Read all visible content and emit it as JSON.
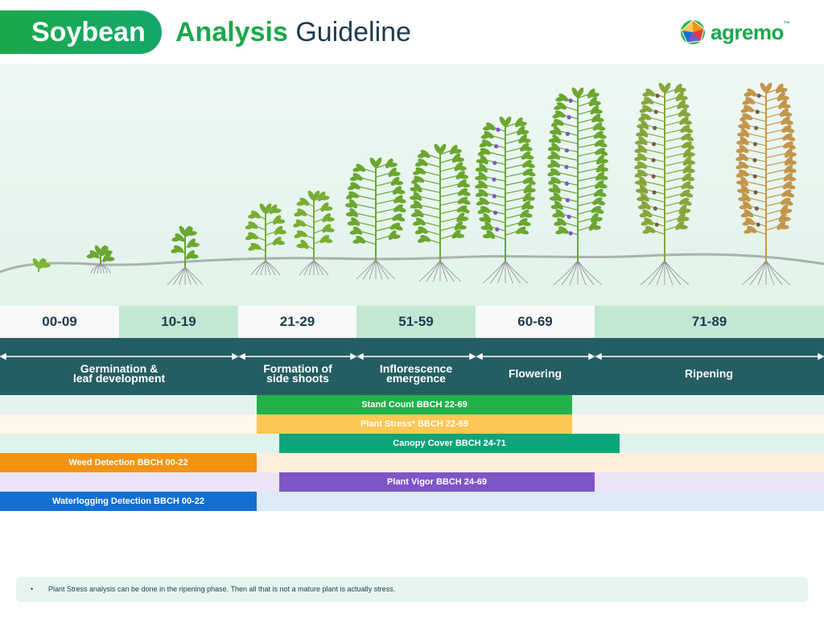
{
  "title": {
    "pill": "Soybean",
    "highlight": "Analysis",
    "rest": "Guideline"
  },
  "logo": {
    "text": "agremo",
    "tm": "™"
  },
  "stages": [
    {
      "code": "00-09"
    },
    {
      "code": "10-19"
    },
    {
      "code": "21-29"
    },
    {
      "code": "51-59"
    },
    {
      "code": "60-69"
    },
    {
      "code": "71-89"
    }
  ],
  "phases": [
    {
      "label": "Germination & leaf development"
    },
    {
      "label": "Formation of side shoots"
    },
    {
      "label": "Inflorescence emergence"
    },
    {
      "label": "Flowering"
    },
    {
      "label": "Ripening"
    }
  ],
  "analyses": [
    {
      "label": "Stand Count BBCH 22-69",
      "color": "#22b24c",
      "bg": "#e3f4ec"
    },
    {
      "label": "Plant Stress* BBCH 22-69",
      "color": "#fdc754",
      "bg": "#fef6e6"
    },
    {
      "label": "Canopy Cover BBCH 24-71",
      "color": "#0aa57a",
      "bg": "#def4ea"
    },
    {
      "label": "Weed Detection BBCH 00-22",
      "color": "#f39313",
      "bg": "#fdefdc"
    },
    {
      "label": "Plant Vigor BBCH 24-69",
      "color": "#7e55c6",
      "bg": "#ece4f6"
    },
    {
      "label": "Waterlogging Detection BBCH 00-22",
      "color": "#1170d2",
      "bg": "#dce9f7"
    }
  ],
  "note": {
    "bullet": "•",
    "text": "Plant Stress analysis can be done in the ripening phase. Then all that is not a mature plant is actually stress."
  }
}
